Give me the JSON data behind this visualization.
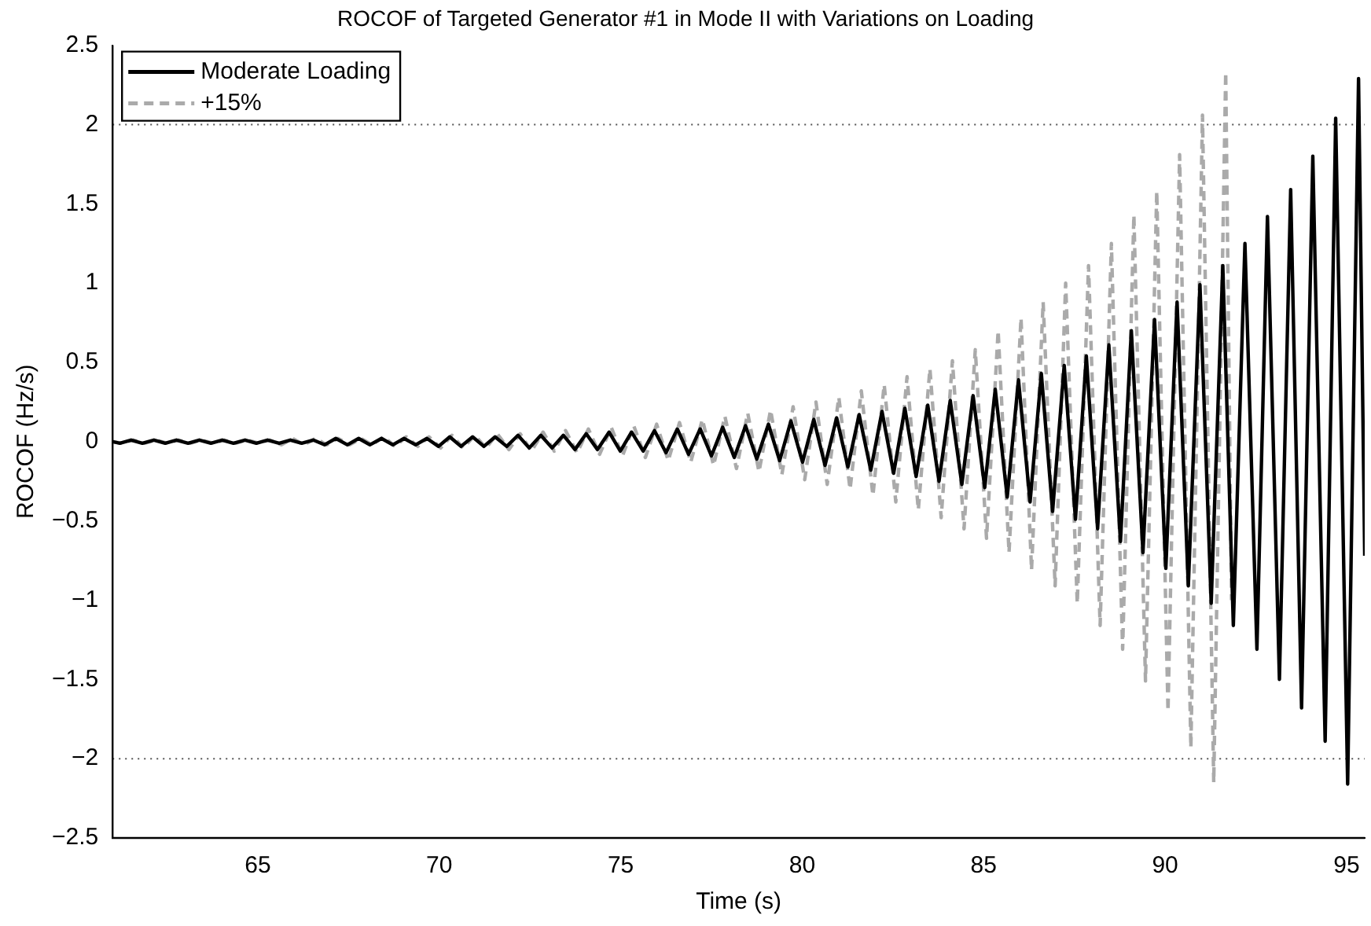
{
  "chart_data": {
    "type": "line",
    "title": "ROCOF of Targeted Generator #1 in Mode II with Variations on Loading",
    "xlabel": "Time (s)",
    "ylabel": "ROCOF (Hz/s)",
    "xlim": [
      61,
      95.5
    ],
    "xticks": [
      65,
      70,
      75,
      80,
      85,
      90,
      95
    ],
    "ylim": [
      -2.5,
      2.5
    ],
    "yticks": [
      {
        "value": -2.5,
        "label": "−2.5"
      },
      {
        "value": -2,
        "label": "−2"
      },
      {
        "value": -1.5,
        "label": "−1.5"
      },
      {
        "value": -1,
        "label": "−1"
      },
      {
        "value": -0.5,
        "label": "−0.5"
      },
      0,
      0.5,
      1,
      1.5,
      2,
      2.5
    ],
    "grid": false,
    "legend": "top left",
    "marker": "none",
    "ref_lines": [
      {
        "axis": "y",
        "value": 2,
        "color": "#555555",
        "line_style": "dotted"
      },
      {
        "axis": "y",
        "value": -2,
        "color": "#555555",
        "line_style": "dotted"
      }
    ],
    "series": [
      {
        "name": "Moderate Loading",
        "color": "#000000",
        "line_style": "solid",
        "x": [
          61.0,
          61.2,
          61.51,
          61.82,
          62.14,
          62.45,
          62.76,
          63.08,
          63.39,
          63.71,
          64.02,
          64.33,
          64.65,
          64.96,
          65.27,
          65.59,
          65.9,
          66.21,
          66.53,
          66.84,
          67.15,
          67.47,
          67.78,
          68.09,
          68.41,
          68.72,
          69.03,
          69.35,
          69.66,
          69.98,
          70.29,
          70.6,
          70.92,
          71.23,
          71.54,
          71.86,
          72.17,
          72.48,
          72.8,
          73.11,
          73.42,
          73.74,
          74.05,
          74.36,
          74.68,
          74.99,
          75.3,
          75.62,
          75.93,
          76.25,
          76.56,
          76.87,
          77.19,
          77.5,
          77.81,
          78.13,
          78.44,
          78.75,
          79.07,
          79.38,
          79.69,
          80.01,
          80.32,
          80.63,
          80.95,
          81.26,
          81.57,
          81.89,
          82.2,
          82.52,
          82.83,
          83.14,
          83.46,
          83.77,
          84.08,
          84.4,
          84.71,
          85.03,
          85.32,
          85.65,
          85.96,
          86.28,
          86.59,
          86.9,
          87.22,
          87.53,
          87.83,
          88.14,
          88.45,
          88.77,
          89.07,
          89.39,
          89.71,
          90.02,
          90.33,
          90.64,
          90.96,
          91.27,
          91.59,
          91.88,
          92.2,
          92.53,
          92.82,
          93.15,
          93.46,
          93.76,
          94.07,
          94.41,
          94.7,
          95.03,
          95.33,
          95.5
        ],
        "values": [
          0,
          -0.01,
          0.01,
          -0.01,
          0.01,
          -0.01,
          0.01,
          -0.01,
          0.01,
          -0.01,
          0.01,
          -0.01,
          0.01,
          -0.01,
          0.01,
          -0.01,
          0.01,
          -0.01,
          0.01,
          -0.02,
          0.02,
          -0.02,
          0.02,
          -0.02,
          0.02,
          -0.02,
          0.02,
          -0.02,
          0.02,
          -0.03,
          0.03,
          -0.03,
          0.03,
          -0.03,
          0.03,
          -0.03,
          0.04,
          -0.04,
          0.04,
          -0.04,
          0.04,
          -0.05,
          0.05,
          -0.05,
          0.06,
          -0.06,
          0.06,
          -0.06,
          0.07,
          -0.07,
          0.08,
          -0.08,
          0.08,
          -0.09,
          0.09,
          -0.1,
          0.1,
          -0.11,
          0.11,
          -0.12,
          0.13,
          -0.13,
          0.14,
          -0.15,
          0.15,
          -0.16,
          0.17,
          -0.18,
          0.19,
          -0.2,
          0.21,
          -0.22,
          0.23,
          -0.25,
          0.26,
          -0.27,
          0.29,
          -0.29,
          0.33,
          -0.35,
          0.39,
          -0.38,
          0.43,
          -0.44,
          0.48,
          -0.49,
          0.54,
          -0.55,
          0.61,
          -0.63,
          0.7,
          -0.7,
          0.77,
          -0.8,
          0.88,
          -0.91,
          0.99,
          -1.02,
          1.11,
          -1.16,
          1.25,
          -1.31,
          1.42,
          -1.5,
          1.59,
          -1.68,
          1.8,
          -1.89,
          2.04,
          -2.16,
          2.29,
          -0.72
        ]
      },
      {
        "name": "+15%",
        "color": "#aaaaaa",
        "line_style": "dashed",
        "x": [
          61.0,
          61.26,
          61.57,
          61.88,
          62.2,
          62.51,
          62.82,
          63.14,
          63.45,
          63.77,
          64.08,
          64.39,
          64.71,
          65.02,
          65.33,
          65.65,
          65.96,
          66.27,
          66.59,
          66.9,
          67.21,
          67.53,
          67.84,
          68.15,
          68.47,
          68.78,
          69.09,
          69.41,
          69.72,
          70.04,
          70.35,
          70.66,
          70.98,
          71.29,
          71.6,
          71.92,
          72.23,
          72.54,
          72.86,
          73.17,
          73.48,
          73.8,
          74.11,
          74.42,
          74.74,
          75.05,
          75.36,
          75.68,
          75.99,
          76.31,
          76.62,
          76.93,
          77.25,
          77.56,
          77.87,
          78.19,
          78.5,
          78.81,
          79.13,
          79.44,
          79.75,
          80.07,
          80.38,
          80.69,
          81.01,
          81.32,
          81.63,
          81.95,
          82.26,
          82.58,
          82.89,
          83.2,
          83.52,
          83.83,
          84.14,
          84.46,
          84.77,
          85.08,
          85.4,
          85.7,
          86.03,
          86.32,
          86.64,
          86.97,
          87.26,
          87.58,
          87.89,
          88.21,
          88.52,
          88.83,
          89.14,
          89.46,
          89.77,
          90.08,
          90.4,
          90.71,
          91.03,
          91.34,
          91.67,
          91.83
        ],
        "values": [
          0,
          -0.01,
          0.01,
          -0.01,
          0.01,
          -0.01,
          0.01,
          -0.01,
          0.01,
          -0.01,
          0.01,
          -0.01,
          0.01,
          -0.01,
          0.01,
          -0.02,
          0.02,
          -0.02,
          0.02,
          -0.02,
          0.02,
          -0.02,
          0.02,
          -0.02,
          0.03,
          -0.03,
          0.03,
          -0.03,
          0.03,
          -0.04,
          0.04,
          -0.04,
          0.04,
          -0.04,
          0.05,
          -0.05,
          0.05,
          -0.06,
          0.06,
          -0.06,
          0.07,
          -0.07,
          0.08,
          -0.08,
          0.09,
          -0.09,
          0.1,
          -0.1,
          0.11,
          -0.12,
          0.12,
          -0.13,
          0.14,
          -0.15,
          0.16,
          -0.17,
          0.18,
          -0.19,
          0.2,
          -0.21,
          0.22,
          -0.24,
          0.25,
          -0.27,
          0.28,
          -0.3,
          0.32,
          -0.34,
          0.36,
          -0.38,
          0.41,
          -0.43,
          0.46,
          -0.48,
          0.51,
          -0.55,
          0.58,
          -0.61,
          0.7,
          -0.7,
          0.78,
          -0.81,
          0.88,
          -0.91,
          1.0,
          -1.02,
          1.11,
          -1.16,
          1.25,
          -1.31,
          1.43,
          -1.51,
          1.58,
          -1.7,
          1.81,
          -1.93,
          2.06,
          -2.15,
          2.33,
          -1.0
        ]
      }
    ]
  }
}
